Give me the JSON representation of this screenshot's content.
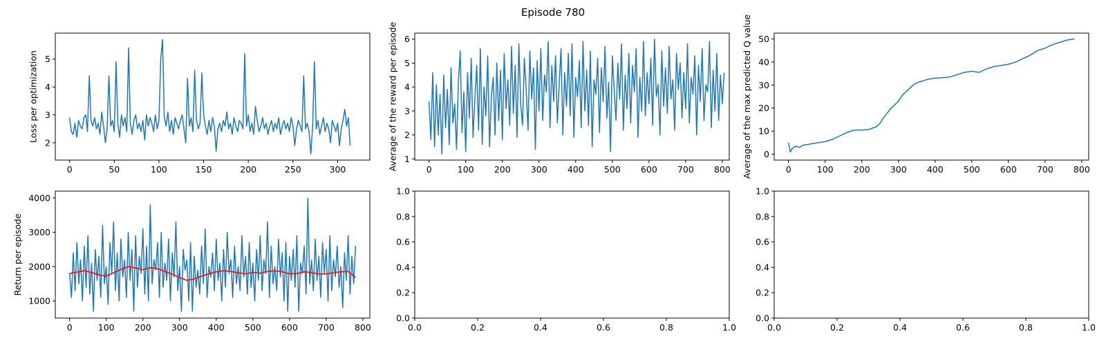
{
  "figure": {
    "title": "Episode 780",
    "colors": {
      "series": "#1f77b4",
      "moving_average": "#e41a1c",
      "axes": "#000000"
    }
  },
  "chart_data": [
    {
      "id": "loss",
      "type": "line",
      "title": "",
      "xlabel": "",
      "ylabel": "Loss per optimization",
      "xlim": [
        -16,
        336
      ],
      "ylim": [
        1.38,
        5.93
      ],
      "xticks": [
        0,
        50,
        100,
        150,
        200,
        250,
        300
      ],
      "yticks": [
        2,
        3,
        4,
        5
      ],
      "grid": false,
      "series": [
        {
          "color": "#1f77b4",
          "x_start": 0,
          "x_step": 2,
          "y": [
            2.9,
            2.4,
            2.3,
            2.7,
            2.2,
            2.8,
            2.6,
            2.5,
            2.9,
            3.0,
            2.4,
            4.4,
            2.8,
            2.6,
            2.9,
            2.5,
            2.7,
            2.3,
            3.1,
            2.6,
            2.0,
            2.5,
            4.4,
            2.6,
            2.8,
            2.4,
            4.9,
            2.7,
            2.2,
            3.0,
            2.6,
            2.9,
            2.4,
            5.4,
            2.7,
            2.3,
            2.8,
            3.0,
            2.5,
            2.7,
            2.4,
            2.8,
            2.1,
            3.0,
            2.6,
            2.9,
            2.7,
            2.4,
            3.0,
            2.5,
            2.8,
            5.0,
            5.7,
            2.9,
            2.6,
            3.1,
            2.4,
            2.8,
            2.3,
            2.9,
            2.7,
            2.5,
            2.8,
            3.0,
            2.5,
            2.0,
            4.3,
            2.6,
            2.9,
            2.4,
            4.6,
            2.8,
            2.5,
            2.7,
            4.5,
            3.0,
            2.6,
            2.3,
            2.8,
            2.4,
            2.9,
            2.6,
            1.7,
            2.5,
            2.7,
            2.4,
            2.8,
            2.6,
            3.1,
            2.5,
            2.7,
            2.3,
            2.9,
            2.6,
            2.4,
            2.8,
            2.7,
            2.5,
            5.2,
            2.6,
            3.0,
            2.4,
            2.7,
            2.3,
            3.3,
            2.8,
            2.4,
            2.6,
            2.9,
            2.5,
            2.7,
            2.3,
            2.6,
            2.8,
            2.4,
            2.7,
            2.5,
            2.9,
            2.3,
            2.6,
            2.8,
            2.5,
            2.7,
            2.4,
            2.9,
            2.6,
            1.9,
            2.5,
            2.8,
            2.6,
            2.4,
            4.4,
            2.5,
            2.7,
            2.4,
            1.6,
            2.6,
            4.9,
            2.5,
            2.8,
            2.3,
            2.6,
            2.9,
            2.4,
            2.7,
            2.5,
            2.0,
            2.8,
            2.6,
            2.4,
            2.7,
            1.9,
            2.5,
            2.8,
            3.2,
            2.6,
            2.9,
            1.9
          ]
        }
      ]
    },
    {
      "id": "reward",
      "type": "line",
      "title": "",
      "xlabel": "",
      "ylabel": "Average of the reward per episode",
      "xlim": [
        -39,
        819
      ],
      "ylim": [
        0.95,
        6.25
      ],
      "xticks": [
        0,
        100,
        200,
        300,
        400,
        500,
        600,
        700,
        800
      ],
      "yticks": [
        1,
        2,
        3,
        4,
        5,
        6
      ],
      "grid": false,
      "series": [
        {
          "color": "#1f77b4",
          "x_start": 0,
          "x_step": 5,
          "y": [
            3.4,
            1.8,
            4.6,
            1.5,
            4.1,
            2.0,
            3.7,
            1.2,
            4.5,
            2.3,
            3.9,
            1.6,
            4.8,
            2.5,
            3.3,
            1.4,
            4.2,
            5.5,
            2.1,
            3.8,
            1.3,
            4.6,
            2.7,
            5.2,
            1.9,
            3.5,
            4.9,
            2.2,
            5.6,
            1.6,
            4.0,
            2.8,
            5.3,
            1.5,
            3.6,
            4.4,
            2.0,
            5.0,
            2.6,
            4.7,
            1.8,
            5.4,
            3.1,
            4.3,
            2.4,
            5.7,
            2.9,
            4.9,
            1.9,
            5.8,
            3.3,
            2.4,
            5.2,
            3.9,
            2.2,
            5.5,
            3.5,
            4.8,
            1.4,
            5.1,
            3.0,
            5.6,
            2.6,
            4.5,
            3.8,
            5.9,
            2.3,
            4.9,
            3.4,
            5.3,
            2.5,
            4.1,
            5.6,
            2.0,
            4.6,
            3.2,
            5.4,
            2.8,
            5.8,
            1.9,
            4.4,
            3.6,
            5.1,
            2.3,
            5.9,
            3.0,
            4.7,
            2.4,
            5.5,
            1.5,
            4.3,
            3.7,
            5.2,
            2.1,
            4.8,
            3.4,
            5.7,
            2.7,
            4.2,
            1.3,
            5.3,
            3.9,
            2.6,
            5.0,
            3.5,
            5.8,
            2.2,
            4.5,
            3.1,
            5.4,
            2.5,
            4.9,
            3.8,
            5.6,
            1.9,
            4.4,
            3.0,
            5.9,
            2.8,
            4.6,
            3.3,
            5.2,
            2.4,
            6.0,
            3.6,
            4.1,
            2.0,
            5.5,
            3.2,
            4.8,
            2.9,
            5.7,
            3.5,
            4.3,
            2.2,
            5.4,
            3.9,
            5.0,
            2.7,
            4.6,
            3.1,
            5.8,
            2.5,
            4.4,
            3.7,
            5.3,
            2.0,
            4.9,
            3.4,
            5.6,
            2.6,
            4.1,
            3.8,
            5.9,
            2.3,
            4.7,
            3.0,
            5.4,
            2.6,
            4.5,
            3.3,
            4.6
          ]
        }
      ]
    },
    {
      "id": "q_value",
      "type": "line",
      "title": "",
      "xlabel": "",
      "ylabel": "Average of the max predicted Q value",
      "xlim": [
        -39,
        819
      ],
      "ylim": [
        -2.5,
        52.5
      ],
      "xticks": [
        0,
        100,
        200,
        300,
        400,
        500,
        600,
        700,
        800
      ],
      "yticks": [
        0,
        10,
        20,
        30,
        40,
        50
      ],
      "grid": false,
      "series": [
        {
          "color": "#1f77b4",
          "x": [
            0,
            5,
            10,
            20,
            30,
            40,
            50,
            60,
            80,
            100,
            120,
            140,
            160,
            180,
            200,
            220,
            240,
            250,
            260,
            270,
            280,
            290,
            300,
            310,
            320,
            330,
            340,
            350,
            360,
            380,
            400,
            420,
            440,
            460,
            480,
            500,
            520,
            540,
            560,
            580,
            600,
            620,
            640,
            660,
            680,
            700,
            720,
            740,
            760,
            780
          ],
          "y": [
            5.0,
            1.0,
            2.5,
            3.5,
            3.0,
            4.0,
            4.2,
            4.5,
            5.0,
            5.5,
            6.5,
            8.0,
            9.5,
            10.5,
            10.5,
            10.8,
            12.0,
            13.5,
            16.0,
            18.0,
            20.0,
            21.5,
            23.0,
            25.5,
            27.0,
            28.5,
            30.0,
            31.0,
            31.5,
            32.5,
            33.0,
            33.2,
            33.5,
            34.5,
            35.5,
            36.0,
            35.5,
            37.0,
            38.0,
            38.5,
            39.0,
            40.0,
            41.5,
            43.0,
            45.0,
            46.0,
            47.5,
            48.5,
            49.5,
            50.0
          ]
        }
      ]
    },
    {
      "id": "return",
      "type": "line",
      "title": "",
      "xlabel": "",
      "ylabel": "Return per episode",
      "xlim": [
        -39,
        819
      ],
      "ylim": [
        500,
        4200
      ],
      "xticks": [
        0,
        100,
        200,
        300,
        400,
        500,
        600,
        700,
        800
      ],
      "yticks": [
        1000,
        2000,
        3000,
        4000
      ],
      "grid": false,
      "series": [
        {
          "color": "#1f77b4",
          "x_start": 0,
          "x_step": 5,
          "y": [
            1800,
            1100,
            2400,
            1300,
            2700,
            1500,
            2200,
            1000,
            2600,
            1400,
            2900,
            1200,
            2100,
            700,
            2500,
            1600,
            2300,
            1100,
            3200,
            1500,
            2000,
            900,
            2700,
            1800,
            3300,
            1300,
            2400,
            1000,
            2800,
            1700,
            2200,
            1100,
            3000,
            1600,
            2500,
            700,
            2900,
            1400,
            2300,
            1800,
            3100,
            1200,
            2600,
            1000,
            3800,
            1500,
            2200,
            1900,
            2700,
            1100,
            3000,
            1400,
            2100,
            1600,
            2800,
            1000,
            2400,
            1700,
            3300,
            1300,
            2000,
            700,
            2500,
            1900,
            2200,
            1000,
            2700,
            700,
            2300,
            1400,
            1900,
            1200,
            2600,
            1500,
            3100,
            1100,
            2000,
            1700,
            2400,
            1300,
            2800,
            1600,
            2100,
            1000,
            2500,
            1400,
            3000,
            1800,
            2200,
            1100,
            2600,
            1500,
            2000,
            1300,
            2900,
            1700,
            2300,
            1200,
            2700,
            1400,
            2100,
            1000,
            2500,
            1600,
            2900,
            1300,
            2200,
            1800,
            3300,
            1100,
            2600,
            1500,
            2000,
            1300,
            2800,
            1700,
            2400,
            1000,
            2700,
            700,
            2300,
            1600,
            2500,
            1400,
            2900,
            700,
            2100,
            1800,
            2600,
            1200,
            4000,
            1500,
            2200,
            1300,
            2800,
            1600,
            2300,
            1100,
            2700,
            1800,
            2500,
            1000,
            2900,
            1300,
            2200,
            1700,
            2600,
            1400,
            2000,
            800,
            2400,
            1600,
            2900,
            1200,
            2300,
            1500,
            2600
          ]
        },
        {
          "color": "#e41a1c",
          "x": [
            0,
            20,
            40,
            60,
            80,
            100,
            120,
            140,
            160,
            180,
            200,
            220,
            240,
            260,
            280,
            300,
            320,
            340,
            360,
            380,
            400,
            420,
            440,
            460,
            480,
            500,
            520,
            540,
            560,
            580,
            600,
            620,
            640,
            660,
            680,
            700,
            720,
            740,
            760,
            780
          ],
          "y": [
            1800,
            1840,
            1880,
            1830,
            1760,
            1720,
            1820,
            1920,
            2000,
            1960,
            1910,
            1970,
            1940,
            1860,
            1780,
            1680,
            1600,
            1640,
            1720,
            1790,
            1850,
            1880,
            1860,
            1820,
            1790,
            1830,
            1810,
            1860,
            1880,
            1850,
            1790,
            1800,
            1850,
            1830,
            1780,
            1790,
            1820,
            1850,
            1860,
            1680
          ]
        }
      ]
    },
    {
      "id": "empty_1",
      "type": "line",
      "title": "",
      "xlabel": "",
      "ylabel": "",
      "xlim": [
        0,
        1
      ],
      "ylim": [
        0,
        1
      ],
      "xticks": [
        0,
        0.2,
        0.4,
        0.6,
        0.8,
        1.0
      ],
      "yticks": [
        0,
        0.2,
        0.4,
        0.6,
        0.8,
        1.0
      ],
      "grid": false,
      "series": []
    },
    {
      "id": "empty_2",
      "type": "line",
      "title": "",
      "xlabel": "",
      "ylabel": "",
      "xlim": [
        0,
        1
      ],
      "ylim": [
        0,
        1
      ],
      "xticks": [
        0,
        0.2,
        0.4,
        0.6,
        0.8,
        1.0
      ],
      "yticks": [
        0,
        0.2,
        0.4,
        0.6,
        0.8,
        1.0
      ],
      "grid": false,
      "series": []
    }
  ]
}
